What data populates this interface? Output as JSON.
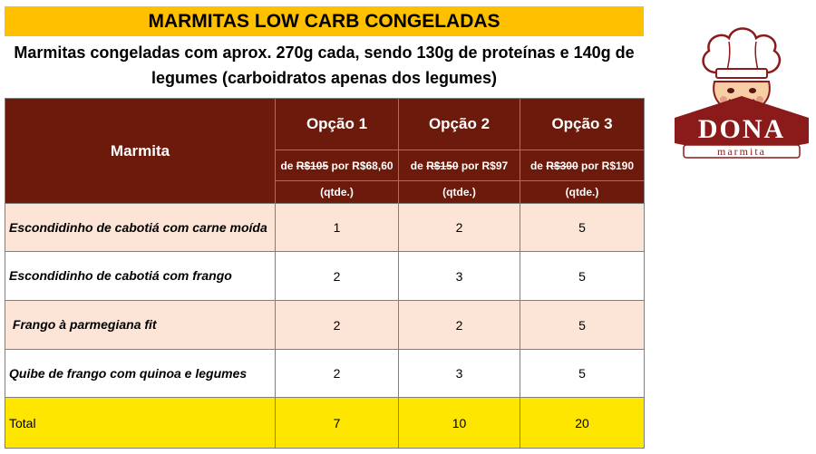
{
  "title": "MARMITAS LOW CARB CONGELADAS",
  "subtitle_line1": "Marmitas congeladas com aprox. 270g cada, sendo 130g de proteínas e 140g de",
  "subtitle_line2": "legumes (carboidratos apenas dos legumes)",
  "table": {
    "col_header": "Marmita",
    "options": [
      {
        "label": "Opção 1",
        "price_prefix": "de ",
        "old_price": "R$105",
        "price_suffix": " por R$68,60",
        "qty_label": "(qtde.)"
      },
      {
        "label": "Opção 2",
        "price_prefix": "de ",
        "old_price": "R$150",
        "price_suffix": " por R$97",
        "qty_label": "(qtde.)"
      },
      {
        "label": "Opção 3",
        "price_prefix": "de ",
        "old_price": "R$300",
        "price_suffix": " por R$190",
        "qty_label": "(qtde.)"
      }
    ],
    "rows": [
      {
        "name": "Escondidinho de cabotiá com carne moída",
        "values": [
          "1",
          "2",
          "5"
        ]
      },
      {
        "name": "Escondidinho de cabotiá com frango",
        "values": [
          "2",
          "3",
          "5"
        ]
      },
      {
        "name": " Frango à parmegiana fit",
        "values": [
          "2",
          "2",
          "5"
        ]
      },
      {
        "name": "Quibe de frango com quinoa e legumes",
        "values": [
          "2",
          "3",
          "5"
        ]
      }
    ],
    "total": {
      "label": "Total",
      "values": [
        "7",
        "10",
        "20"
      ]
    }
  },
  "logo": {
    "name": "DONA",
    "tagline": "marmita"
  },
  "colors": {
    "title_bg": "#ffc000",
    "header_bg": "#6b1a0b",
    "row_pink": "#fce4d6",
    "total_bg": "#ffe600",
    "logo_red": "#8b1a1a"
  }
}
